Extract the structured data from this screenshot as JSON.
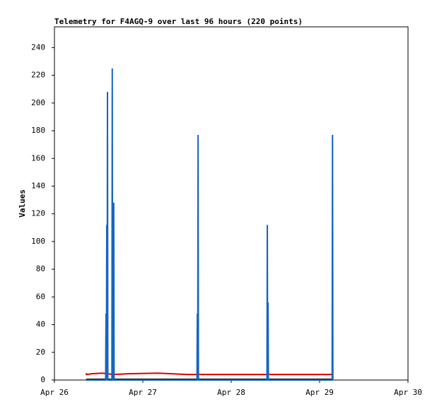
{
  "chart_data": {
    "type": "line",
    "title": "Telemetry for F4AGQ-9 over last 96 hours (220 points)",
    "y_label": "Values",
    "xlim": [
      0,
      96
    ],
    "xticks": [
      {
        "value": 0,
        "label": "Apr 26"
      },
      {
        "value": 24,
        "label": "Apr 27"
      },
      {
        "value": 48,
        "label": "Apr 28"
      },
      {
        "value": 72,
        "label": "Apr 29"
      },
      {
        "value": 96,
        "label": "Apr 30"
      }
    ],
    "ylim": [
      0,
      255
    ],
    "yticks": [
      0,
      20,
      40,
      60,
      80,
      100,
      120,
      140,
      160,
      180,
      200,
      220,
      240
    ],
    "series": [
      {
        "color": "#000000",
        "x": [
          8.6,
          75.5
        ],
        "values": [
          0.5,
          0.5
        ]
      },
      {
        "color": "#dd0000",
        "x": [
          8.6,
          8.7,
          10,
          13,
          16,
          20,
          28,
          32,
          36,
          60,
          75.5
        ],
        "values": [
          5,
          4,
          4.5,
          5,
          4,
          4.5,
          5,
          4.5,
          4,
          4,
          4
        ]
      },
      {
        "color": "#1565c0",
        "x": [
          8.6,
          13.9,
          14.0,
          14.1,
          14.2,
          14.3,
          14.4,
          14.5,
          15.6,
          15.7,
          15.8,
          16.0,
          16.1,
          16.2,
          38.7,
          38.8,
          38.9,
          39.0,
          39.1,
          57.7,
          57.8,
          57.9,
          58.0,
          58.1,
          75.4,
          75.5,
          75.6
        ],
        "values": [
          0,
          0,
          48,
          0,
          112,
          0,
          208,
          0,
          0,
          225,
          0,
          0,
          128,
          0,
          0,
          48,
          0,
          177,
          0,
          0,
          112,
          0,
          56,
          0,
          0,
          177,
          0
        ]
      }
    ]
  }
}
